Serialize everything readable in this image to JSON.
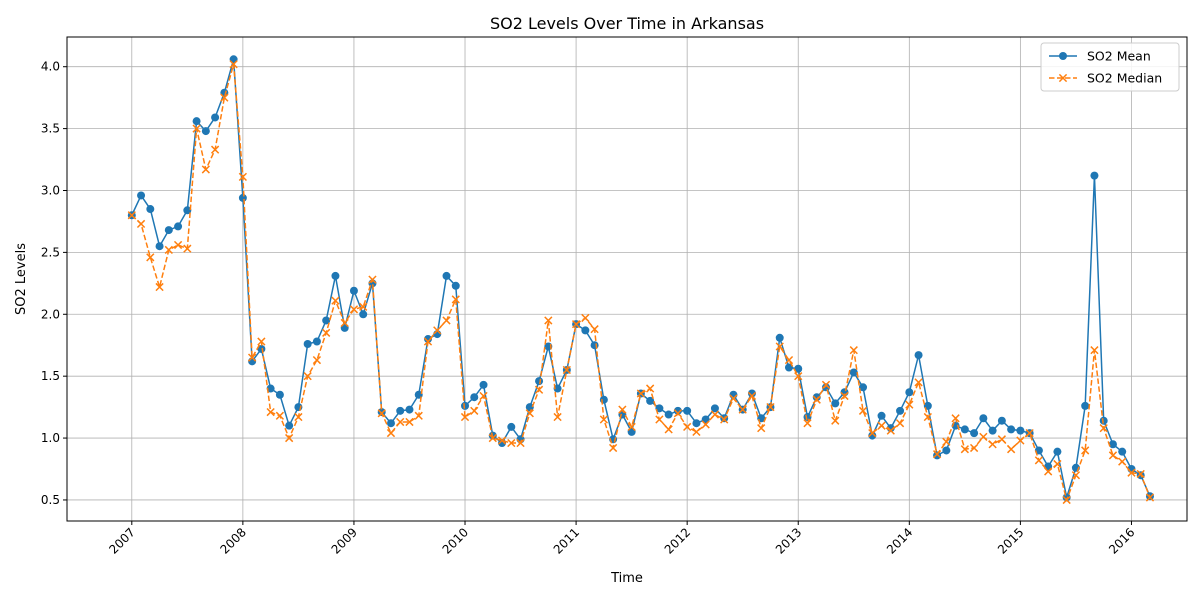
{
  "chart_data": {
    "type": "line",
    "title": "SO2 Levels Over Time in Arkansas",
    "xlabel": "Time",
    "ylabel": "SO2 Levels",
    "x_tick_labels": [
      "2007",
      "2008",
      "2009",
      "2010",
      "2011",
      "2012",
      "2013",
      "2014",
      "2015",
      "2016"
    ],
    "y_ticks": [
      0.5,
      1.0,
      1.5,
      2.0,
      2.5,
      3.0,
      3.5,
      4.0
    ],
    "y_tick_labels": [
      "0.5",
      "1.0",
      "1.5",
      "2.0",
      "2.5",
      "3.0",
      "3.5",
      "4.0"
    ],
    "xlim": [
      "2006-06",
      "2016-07"
    ],
    "ylim": [
      0.33,
      4.24
    ],
    "grid": true,
    "legend_position": "top-right",
    "x": [
      "2007-01",
      "2007-02",
      "2007-03",
      "2007-04",
      "2007-05",
      "2007-06",
      "2007-07",
      "2007-08",
      "2007-09",
      "2007-10",
      "2007-11",
      "2007-12",
      "2008-01",
      "2008-02",
      "2008-03",
      "2008-04",
      "2008-05",
      "2008-06",
      "2008-07",
      "2008-08",
      "2008-09",
      "2008-10",
      "2008-11",
      "2008-12",
      "2009-01",
      "2009-02",
      "2009-03",
      "2009-04",
      "2009-05",
      "2009-06",
      "2009-07",
      "2009-08",
      "2009-09",
      "2009-10",
      "2009-11",
      "2009-12",
      "2010-01",
      "2010-02",
      "2010-03",
      "2010-04",
      "2010-05",
      "2010-06",
      "2010-07",
      "2010-08",
      "2010-09",
      "2010-10",
      "2010-11",
      "2010-12",
      "2011-01",
      "2011-02",
      "2011-03",
      "2011-04",
      "2011-05",
      "2011-06",
      "2011-07",
      "2011-08",
      "2011-09",
      "2011-10",
      "2011-11",
      "2011-12",
      "2012-01",
      "2012-02",
      "2012-03",
      "2012-04",
      "2012-05",
      "2012-06",
      "2012-07",
      "2012-08",
      "2012-09",
      "2012-10",
      "2012-11",
      "2012-12",
      "2013-01",
      "2013-02",
      "2013-03",
      "2013-04",
      "2013-05",
      "2013-06",
      "2013-07",
      "2013-08",
      "2013-09",
      "2013-10",
      "2013-11",
      "2013-12",
      "2014-01",
      "2014-02",
      "2014-03",
      "2014-04",
      "2014-05",
      "2014-06",
      "2014-07",
      "2014-08",
      "2014-09",
      "2014-10",
      "2014-11",
      "2014-12",
      "2015-01",
      "2015-02",
      "2015-03",
      "2015-04",
      "2015-05",
      "2015-06",
      "2015-07",
      "2015-08",
      "2015-09",
      "2015-10",
      "2015-11",
      "2015-12",
      "2016-01",
      "2016-02",
      "2016-03"
    ],
    "series": [
      {
        "name": "SO2 Mean",
        "color": "#1f77b4",
        "linestyle": "solid",
        "marker": "circle",
        "values": [
          2.8,
          2.96,
          2.85,
          2.55,
          2.68,
          2.71,
          2.84,
          3.56,
          3.48,
          3.59,
          3.79,
          4.06,
          2.94,
          1.62,
          1.72,
          1.4,
          1.35,
          1.1,
          1.25,
          1.76,
          1.78,
          1.95,
          2.31,
          1.89,
          2.19,
          2.0,
          2.25,
          1.21,
          1.12,
          1.22,
          1.23,
          1.35,
          1.8,
          1.84,
          2.31,
          2.23,
          1.26,
          1.33,
          1.43,
          1.02,
          0.96,
          1.09,
          0.99,
          1.25,
          1.46,
          1.74,
          1.4,
          1.55,
          1.92,
          1.87,
          1.75,
          1.31,
          0.99,
          1.19,
          1.05,
          1.36,
          1.3,
          1.24,
          1.19,
          1.22,
          1.22,
          1.12,
          1.15,
          1.24,
          1.16,
          1.35,
          1.23,
          1.36,
          1.16,
          1.25,
          1.81,
          1.57,
          1.56,
          1.17,
          1.33,
          1.41,
          1.28,
          1.37,
          1.53,
          1.41,
          1.02,
          1.18,
          1.08,
          1.22,
          1.37,
          1.67,
          1.26,
          0.86,
          0.9,
          1.1,
          1.07,
          1.04,
          1.16,
          1.06,
          1.14,
          1.07,
          1.06,
          1.04,
          0.9,
          0.77,
          0.89,
          0.52,
          0.76,
          1.26,
          3.12,
          1.14,
          0.95,
          0.89,
          0.75,
          0.7,
          0.53
        ]
      },
      {
        "name": "SO2 Median",
        "color": "#ff7f0e",
        "linestyle": "dashed",
        "marker": "x",
        "values": [
          2.8,
          2.73,
          2.46,
          2.22,
          2.52,
          2.56,
          2.53,
          3.5,
          3.17,
          3.33,
          3.75,
          4.02,
          3.11,
          1.65,
          1.78,
          1.21,
          1.18,
          1.0,
          1.17,
          1.5,
          1.63,
          1.85,
          2.11,
          1.93,
          2.04,
          2.06,
          2.28,
          1.2,
          1.04,
          1.13,
          1.13,
          1.18,
          1.78,
          1.87,
          1.95,
          2.12,
          1.17,
          1.22,
          1.34,
          1.0,
          0.98,
          0.96,
          0.96,
          1.2,
          1.39,
          1.95,
          1.17,
          1.55,
          1.92,
          1.97,
          1.88,
          1.15,
          0.92,
          1.23,
          1.09,
          1.36,
          1.4,
          1.15,
          1.07,
          1.2,
          1.09,
          1.05,
          1.11,
          1.19,
          1.15,
          1.32,
          1.23,
          1.34,
          1.08,
          1.25,
          1.74,
          1.63,
          1.5,
          1.12,
          1.31,
          1.43,
          1.14,
          1.34,
          1.71,
          1.22,
          1.04,
          1.1,
          1.06,
          1.12,
          1.27,
          1.45,
          1.17,
          0.87,
          0.97,
          1.16,
          0.91,
          0.92,
          1.01,
          0.95,
          0.99,
          0.91,
          0.98,
          1.04,
          0.82,
          0.73,
          0.79,
          0.5,
          0.7,
          0.9,
          1.71,
          1.08,
          0.86,
          0.81,
          0.72,
          0.71,
          0.52
        ]
      }
    ]
  }
}
